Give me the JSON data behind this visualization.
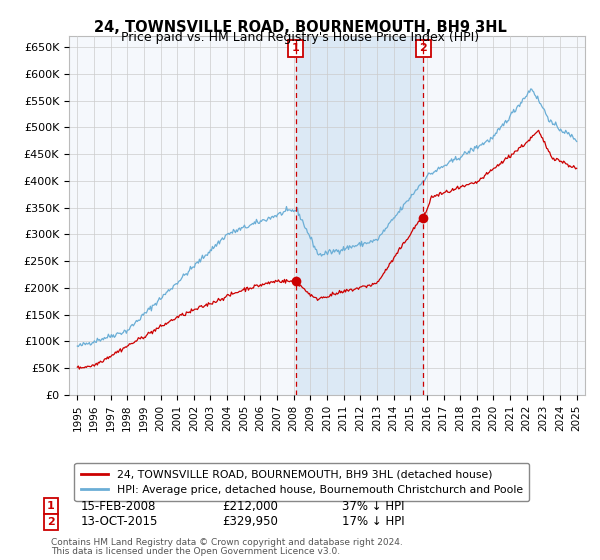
{
  "title": "24, TOWNSVILLE ROAD, BOURNEMOUTH, BH9 3HL",
  "subtitle": "Price paid vs. HM Land Registry's House Price Index (HPI)",
  "ylabel_ticks": [
    "£0",
    "£50K",
    "£100K",
    "£150K",
    "£200K",
    "£250K",
    "£300K",
    "£350K",
    "£400K",
    "£450K",
    "£500K",
    "£550K",
    "£600K",
    "£650K"
  ],
  "ytick_values": [
    0,
    50000,
    100000,
    150000,
    200000,
    250000,
    300000,
    350000,
    400000,
    450000,
    500000,
    550000,
    600000,
    650000
  ],
  "xlim": [
    1994.5,
    2025.5
  ],
  "ylim": [
    0,
    670000
  ],
  "sale1_date": 2008.12,
  "sale1_price": 212000,
  "sale1_label": "1",
  "sale1_pct": "37% ↓ HPI",
  "sale1_display_date": "15-FEB-2008",
  "sale1_display_price": "£212,000",
  "sale2_date": 2015.79,
  "sale2_price": 329950,
  "sale2_label": "2",
  "sale2_pct": "17% ↓ HPI",
  "sale2_display_date": "13-OCT-2015",
  "sale2_display_price": "£329,950",
  "legend1": "24, TOWNSVILLE ROAD, BOURNEMOUTH, BH9 3HL (detached house)",
  "legend2": "HPI: Average price, detached house, Bournemouth Christchurch and Poole",
  "footer1": "Contains HM Land Registry data © Crown copyright and database right 2024.",
  "footer2": "This data is licensed under the Open Government Licence v3.0.",
  "hpi_color": "#6baed6",
  "sale_color": "#cc0000",
  "bg_chart": "#f5f8fc",
  "shade_color": "#dce9f5",
  "bg_figure": "#ffffff",
  "grid_color": "#cccccc"
}
